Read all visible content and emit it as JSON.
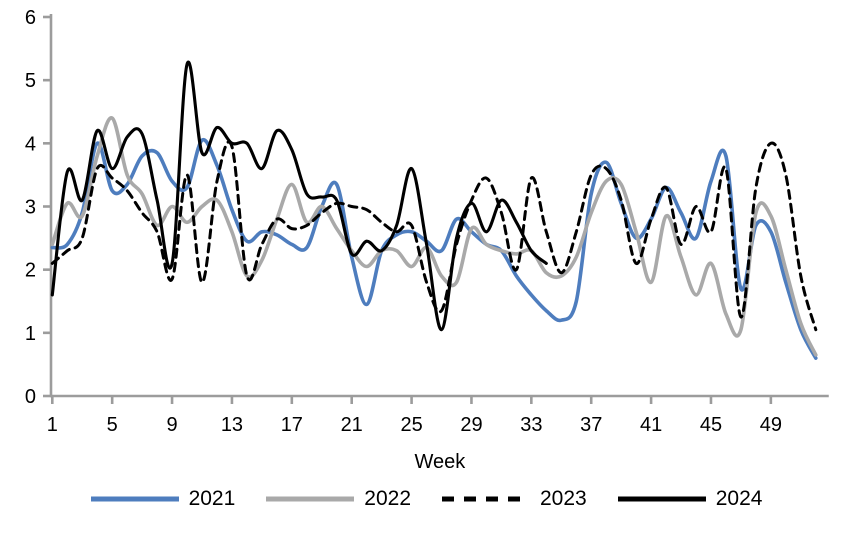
{
  "chart_data": {
    "type": "line",
    "title": "",
    "xlabel": "Week",
    "x_ticks": [
      1,
      5,
      9,
      13,
      17,
      21,
      25,
      29,
      33,
      37,
      41,
      45,
      49
    ],
    "y_ticks": [
      0,
      1,
      2,
      3,
      4,
      5,
      6
    ],
    "xlim": [
      1,
      52.2
    ],
    "ylim": [
      0,
      6
    ],
    "grid": false,
    "legend_position": "bottom",
    "axis_color": "#9c9c9c",
    "text_color": "#000000",
    "series": [
      {
        "name": "2021",
        "color": "#4e7dbe",
        "dash": null,
        "width": 3.6,
        "start_week": 1,
        "values": [
          2.35,
          2.4,
          2.9,
          4.0,
          3.25,
          3.35,
          3.8,
          3.85,
          3.4,
          3.3,
          4.05,
          3.65,
          2.95,
          2.45,
          2.6,
          2.55,
          2.4,
          2.35,
          3.0,
          3.35,
          2.2,
          1.45,
          2.3,
          2.55,
          2.6,
          2.45,
          2.3,
          2.8,
          2.6,
          2.4,
          2.3,
          1.9,
          1.6,
          1.35,
          1.2,
          1.5,
          3.2,
          3.7,
          3.05,
          2.5,
          2.8,
          3.3,
          2.9,
          2.5,
          3.4,
          3.8,
          1.7,
          2.7,
          2.6,
          1.8,
          1.05,
          0.6
        ]
      },
      {
        "name": "2022",
        "color": "#a9a9a9",
        "dash": null,
        "width": 3.6,
        "start_week": 1,
        "values": [
          2.4,
          3.05,
          2.85,
          3.8,
          4.4,
          3.5,
          3.2,
          2.7,
          3.0,
          2.75,
          3.0,
          3.1,
          2.6,
          1.9,
          2.15,
          2.8,
          3.35,
          2.75,
          3.0,
          2.65,
          2.3,
          2.05,
          2.3,
          2.3,
          2.05,
          2.35,
          1.9,
          1.8,
          2.65,
          2.4,
          2.3,
          2.25,
          2.3,
          1.95,
          1.9,
          2.2,
          2.9,
          3.4,
          3.35,
          2.6,
          1.8,
          2.85,
          2.2,
          1.6,
          2.1,
          1.3,
          1.05,
          2.9,
          2.85,
          2.0,
          1.15,
          0.65
        ]
      },
      {
        "name": "2023",
        "color": "#000000",
        "dash": "8 6",
        "width": 3,
        "start_week": 1,
        "values": [
          2.1,
          2.3,
          2.5,
          3.6,
          3.45,
          3.25,
          2.9,
          2.6,
          1.85,
          3.5,
          1.8,
          3.4,
          3.95,
          1.9,
          2.4,
          2.8,
          2.65,
          2.7,
          2.9,
          3.05,
          3.0,
          2.95,
          2.75,
          2.6,
          2.7,
          1.8,
          1.35,
          2.4,
          3.1,
          3.45,
          2.9,
          2.0,
          3.45,
          2.6,
          1.95,
          2.6,
          3.5,
          3.6,
          3.1,
          2.1,
          2.8,
          3.3,
          2.4,
          3.0,
          2.6,
          3.6,
          1.25,
          3.3,
          4.0,
          3.5,
          1.9,
          1.05
        ]
      },
      {
        "name": "2024",
        "color": "#000000",
        "dash": null,
        "width": 3.1,
        "start_week": 1,
        "values": [
          1.6,
          3.55,
          3.1,
          4.2,
          3.6,
          4.1,
          4.15,
          3.1,
          2.1,
          5.25,
          3.85,
          4.25,
          4.0,
          4.0,
          3.6,
          4.2,
          3.9,
          3.2,
          3.15,
          3.1,
          2.25,
          2.45,
          2.3,
          2.7,
          3.6,
          2.4,
          1.05,
          2.5,
          3.05,
          2.6,
          3.1,
          2.75,
          2.3,
          2.1
        ]
      }
    ]
  }
}
